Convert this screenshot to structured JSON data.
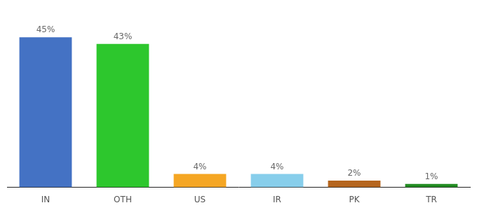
{
  "chart_data": {
    "type": "bar",
    "categories": [
      "IN",
      "OTH",
      "US",
      "IR",
      "PK",
      "TR"
    ],
    "values": [
      45,
      43,
      4,
      4,
      2,
      1
    ],
    "value_labels": [
      "45%",
      "43%",
      "4%",
      "4%",
      "2%",
      "1%"
    ],
    "colors": [
      "#4472c4",
      "#2dc72d",
      "#f5a623",
      "#87ceeb",
      "#b5651d",
      "#228b22"
    ],
    "ylim": [
      0,
      52
    ],
    "data_labels": true,
    "tick_labels": "x",
    "grid": false
  }
}
